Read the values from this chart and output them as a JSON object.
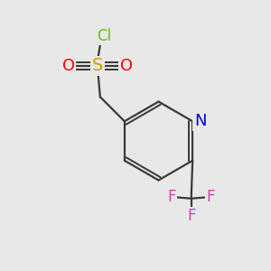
{
  "background_color": "#e8e8e8",
  "bond_color": "#3a3a3a",
  "bond_width": 1.6,
  "colors": {
    "Cl": "#6abf1a",
    "S": "#c8a000",
    "O": "#ff0000",
    "N": "#0000dd",
    "F": "#cc44aa",
    "C": "#3a3a3a"
  },
  "font_size": 12
}
